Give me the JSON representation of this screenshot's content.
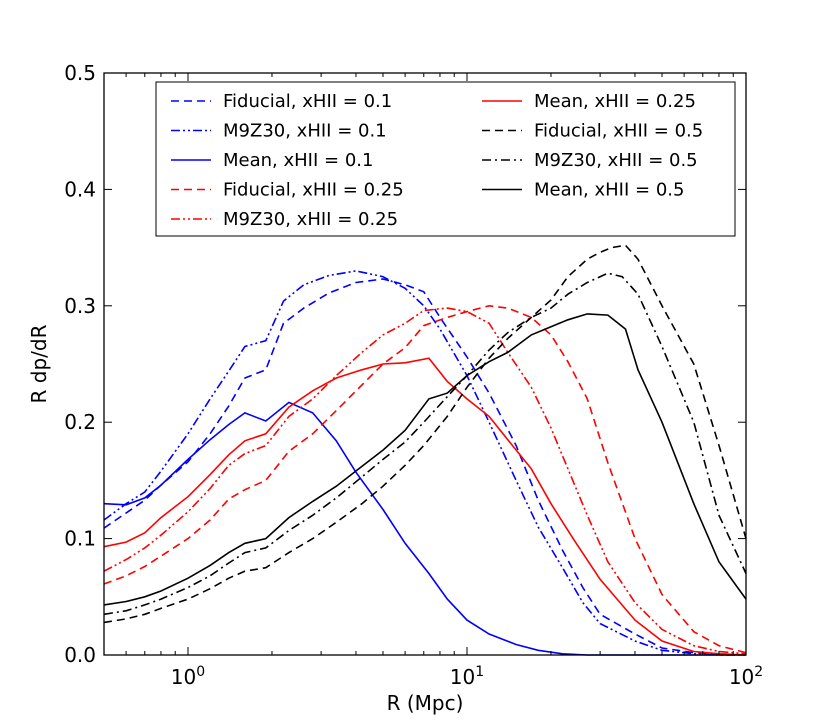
{
  "chart_data": {
    "type": "line",
    "title": "",
    "xlabel": "R (Mpc)",
    "ylabel": "R dp/dR",
    "xscale": "log",
    "xlim": [
      0.5,
      100
    ],
    "ylim": [
      0.0,
      0.5
    ],
    "grid": false,
    "legend_position": "top",
    "x_ticks": [
      {
        "value": 1,
        "base": "10",
        "exp": "0"
      },
      {
        "value": 10,
        "base": "10",
        "exp": "1"
      },
      {
        "value": 100,
        "base": "10",
        "exp": "2"
      }
    ],
    "y_ticks": [
      "0.0",
      "0.1",
      "0.2",
      "0.3",
      "0.4",
      "0.5"
    ],
    "series": [
      {
        "name": "Fiducial, xHII = 0.1",
        "color": "#0000ff",
        "style": "dashed",
        "x": [
          0.5,
          0.6,
          0.7,
          0.8,
          1.0,
          1.2,
          1.4,
          1.6,
          1.9,
          2.2,
          2.6,
          3.2,
          4.0,
          5.0,
          6.0,
          7.0,
          8.0,
          10,
          12,
          15,
          18,
          22,
          26,
          30,
          40,
          50,
          65,
          80,
          100
        ],
        "values": [
          0.109,
          0.122,
          0.133,
          0.146,
          0.166,
          0.19,
          0.214,
          0.238,
          0.245,
          0.285,
          0.298,
          0.311,
          0.32,
          0.323,
          0.318,
          0.312,
          0.29,
          0.256,
          0.225,
          0.18,
          0.133,
          0.09,
          0.058,
          0.035,
          0.018,
          0.006,
          0.002,
          0.001,
          0.0
        ]
      },
      {
        "name": "M9Z30, xHII = 0.1",
        "color": "#0000ff",
        "style": "dashdotdot",
        "x": [
          0.5,
          0.6,
          0.7,
          0.8,
          1.0,
          1.2,
          1.4,
          1.6,
          1.9,
          2.2,
          2.6,
          3.2,
          4.0,
          5.0,
          6.0,
          7.0,
          8.0,
          10,
          12,
          15,
          18,
          22,
          26,
          30,
          40,
          50,
          65,
          80,
          100
        ],
        "values": [
          0.116,
          0.13,
          0.14,
          0.158,
          0.19,
          0.22,
          0.244,
          0.265,
          0.27,
          0.304,
          0.318,
          0.326,
          0.33,
          0.325,
          0.315,
          0.3,
          0.28,
          0.24,
          0.2,
          0.15,
          0.11,
          0.075,
          0.045,
          0.027,
          0.012,
          0.004,
          0.001,
          0.0,
          0.0
        ]
      },
      {
        "name": "Mean, xHII = 0.1",
        "color": "#0000ff",
        "style": "solid",
        "x": [
          0.5,
          0.6,
          0.7,
          0.8,
          1.0,
          1.2,
          1.4,
          1.6,
          1.9,
          2.3,
          2.8,
          3.4,
          4.0,
          5.0,
          6.0,
          7.3,
          8.5,
          10,
          12,
          15,
          18,
          22,
          27,
          33,
          40,
          50,
          65,
          100
        ],
        "values": [
          0.13,
          0.129,
          0.135,
          0.146,
          0.168,
          0.185,
          0.198,
          0.208,
          0.201,
          0.217,
          0.208,
          0.184,
          0.157,
          0.125,
          0.096,
          0.07,
          0.048,
          0.03,
          0.018,
          0.009,
          0.004,
          0.001,
          0.0,
          0.0,
          0.0,
          0.0,
          0.0,
          0.0
        ]
      },
      {
        "name": "Fiducial, xHII = 0.25",
        "color": "#ff0000",
        "style": "dashed",
        "x": [
          0.5,
          0.6,
          0.7,
          0.8,
          1.0,
          1.2,
          1.4,
          1.6,
          1.9,
          2.3,
          2.8,
          3.4,
          4.2,
          5.0,
          6.0,
          7.0,
          8.5,
          10,
          12,
          14,
          17,
          20,
          23,
          27,
          32,
          40,
          50,
          65,
          80,
          100
        ],
        "values": [
          0.061,
          0.068,
          0.076,
          0.085,
          0.1,
          0.116,
          0.134,
          0.142,
          0.15,
          0.175,
          0.19,
          0.21,
          0.232,
          0.25,
          0.264,
          0.283,
          0.29,
          0.295,
          0.3,
          0.298,
          0.29,
          0.275,
          0.252,
          0.22,
          0.165,
          0.1,
          0.052,
          0.02,
          0.008,
          0.002
        ]
      },
      {
        "name": "M9Z30, xHII = 0.25",
        "color": "#ff0000",
        "style": "dashdotdot",
        "x": [
          0.5,
          0.6,
          0.7,
          0.8,
          1.0,
          1.2,
          1.4,
          1.6,
          1.9,
          2.3,
          2.8,
          3.4,
          4.2,
          5.0,
          6.0,
          7.0,
          8.5,
          10,
          12,
          14,
          17,
          20,
          23,
          27,
          32,
          40,
          50,
          65,
          80,
          100
        ],
        "values": [
          0.072,
          0.082,
          0.092,
          0.103,
          0.123,
          0.143,
          0.163,
          0.173,
          0.18,
          0.205,
          0.22,
          0.24,
          0.26,
          0.275,
          0.285,
          0.296,
          0.298,
          0.295,
          0.285,
          0.26,
          0.23,
          0.195,
          0.16,
          0.12,
          0.08,
          0.045,
          0.022,
          0.008,
          0.003,
          0.001
        ]
      },
      {
        "name": "Mean, xHII = 0.25",
        "color": "#ff0000",
        "style": "solid",
        "x": [
          0.5,
          0.6,
          0.7,
          0.8,
          1.0,
          1.2,
          1.4,
          1.6,
          1.9,
          2.3,
          2.8,
          3.4,
          4.2,
          5.0,
          6.0,
          7.3,
          8.5,
          10,
          12,
          14,
          17,
          20,
          24,
          30,
          40,
          50,
          65,
          80,
          100
        ],
        "values": [
          0.093,
          0.097,
          0.105,
          0.118,
          0.136,
          0.155,
          0.172,
          0.184,
          0.19,
          0.213,
          0.227,
          0.238,
          0.245,
          0.25,
          0.251,
          0.255,
          0.235,
          0.22,
          0.205,
          0.185,
          0.16,
          0.13,
          0.1,
          0.065,
          0.03,
          0.012,
          0.003,
          0.001,
          0.0
        ]
      },
      {
        "name": "Fiducial, xHII = 0.5",
        "color": "#000000",
        "style": "dashed",
        "x": [
          0.5,
          0.6,
          0.7,
          0.8,
          1.0,
          1.2,
          1.4,
          1.6,
          1.9,
          2.3,
          2.8,
          3.4,
          4.2,
          5.0,
          6.0,
          7.0,
          8.5,
          10,
          12,
          14,
          17,
          20,
          23,
          27,
          30,
          33,
          37,
          41,
          50,
          65,
          80,
          100
        ],
        "values": [
          0.028,
          0.031,
          0.035,
          0.04,
          0.048,
          0.057,
          0.066,
          0.072,
          0.075,
          0.088,
          0.1,
          0.114,
          0.13,
          0.145,
          0.163,
          0.18,
          0.205,
          0.23,
          0.255,
          0.272,
          0.29,
          0.305,
          0.325,
          0.34,
          0.346,
          0.35,
          0.352,
          0.34,
          0.3,
          0.25,
          0.18,
          0.1
        ]
      },
      {
        "name": "M9Z30, xHII = 0.5",
        "color": "#000000",
        "style": "dashdot",
        "x": [
          0.5,
          0.6,
          0.7,
          0.8,
          1.0,
          1.2,
          1.4,
          1.6,
          1.9,
          2.3,
          2.8,
          3.4,
          4.2,
          5.0,
          6.0,
          7.0,
          8.5,
          10,
          12,
          14,
          17,
          20,
          23,
          27,
          32,
          36,
          41,
          50,
          65,
          80,
          100
        ],
        "values": [
          0.035,
          0.038,
          0.043,
          0.048,
          0.058,
          0.068,
          0.079,
          0.088,
          0.092,
          0.107,
          0.12,
          0.135,
          0.153,
          0.168,
          0.183,
          0.2,
          0.222,
          0.24,
          0.262,
          0.277,
          0.29,
          0.298,
          0.31,
          0.32,
          0.328,
          0.325,
          0.31,
          0.265,
          0.2,
          0.12,
          0.07
        ]
      },
      {
        "name": "Mean, xHII = 0.5",
        "color": "#000000",
        "style": "solid",
        "x": [
          0.5,
          0.6,
          0.7,
          0.8,
          1.0,
          1.2,
          1.4,
          1.6,
          1.9,
          2.3,
          2.8,
          3.4,
          4.2,
          5.0,
          6.0,
          7.3,
          8.5,
          10,
          12,
          14,
          17,
          20,
          23,
          27,
          32,
          37,
          41,
          50,
          65,
          80,
          100
        ],
        "values": [
          0.043,
          0.046,
          0.05,
          0.055,
          0.066,
          0.077,
          0.088,
          0.096,
          0.1,
          0.118,
          0.132,
          0.145,
          0.162,
          0.176,
          0.193,
          0.22,
          0.225,
          0.24,
          0.252,
          0.26,
          0.275,
          0.282,
          0.288,
          0.293,
          0.292,
          0.28,
          0.245,
          0.2,
          0.13,
          0.08,
          0.048
        ]
      }
    ]
  }
}
